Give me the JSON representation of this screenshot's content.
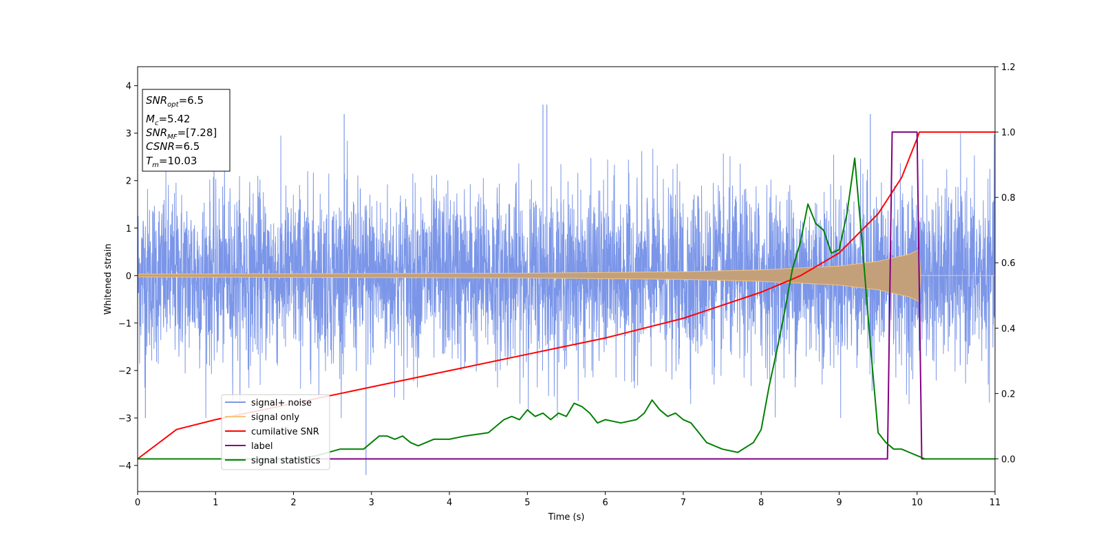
{
  "chart_data": {
    "type": "line",
    "xlabel": "Time (s)",
    "ylabel": "Whitened strain",
    "xlim": [
      0,
      11
    ],
    "ylim_left": [
      -4.55,
      4.4
    ],
    "ylim_right": [
      -0.1,
      1.2
    ],
    "x_ticks": [
      "0",
      "1",
      "2",
      "3",
      "4",
      "5",
      "6",
      "7",
      "8",
      "9",
      "10",
      "11"
    ],
    "y_left_ticks": [
      "4",
      "3",
      "2",
      "1",
      "0",
      "−1",
      "−2",
      "−3",
      "−4"
    ],
    "y_right_ticks": [
      "1.2",
      "1.0",
      "0.8",
      "0.6",
      "0.4",
      "0.2",
      "0.0"
    ],
    "grid": false,
    "legend_position": "lower-left",
    "info_box": {
      "snr_opt_base": "SNR",
      "snr_opt_sub": "opt",
      "snr_opt_val": "=6.5",
      "mc_base": "M",
      "mc_sub": "c",
      "mc_val": "=5.42",
      "snr_mf_base": "SNR",
      "snr_mf_sub": "MF",
      "snr_mf_val": "=[7.28]",
      "csnr_base": "CSNR",
      "csnr_val": "=6.5",
      "tm_base": "T",
      "tm_sub": "m",
      "tm_val": "=10.03"
    },
    "series": [
      {
        "name": "signal+ noise",
        "color": "#7b96e8",
        "axis": "left",
        "noise_std": 0.9,
        "peak_times": [
          0.1,
          2.65,
          2.93,
          5.2,
          5.25,
          9.4
        ],
        "peak_values": [
          -3.0,
          3.4,
          -4.2,
          3.6,
          3.6,
          3.4
        ]
      },
      {
        "name": "signal only",
        "color": "#f5c57a",
        "axis": "left",
        "envelope": {
          "x": [
            0,
            5,
            7,
            8,
            9,
            9.5,
            9.9,
            10.03,
            10.04,
            11
          ],
          "amp": [
            0.03,
            0.05,
            0.08,
            0.12,
            0.2,
            0.3,
            0.45,
            0.55,
            0.0,
            0.0
          ]
        }
      },
      {
        "name": "cumilative SNR",
        "color": "#ff0000",
        "axis": "right",
        "x": [
          0,
          0.5,
          1,
          2,
          3,
          4,
          5,
          6,
          7,
          8,
          8.5,
          9,
          9.5,
          9.8,
          10.0,
          10.03,
          11
        ],
        "values": [
          0.0,
          0.09,
          0.12,
          0.17,
          0.22,
          0.27,
          0.32,
          0.37,
          0.43,
          0.51,
          0.56,
          0.63,
          0.75,
          0.86,
          0.98,
          1.0,
          1.0
        ]
      },
      {
        "name": "label",
        "color": "#800080",
        "axis": "right",
        "x": [
          0,
          9.62,
          9.68,
          10.0,
          10.06,
          11
        ],
        "values": [
          0,
          0,
          1,
          1,
          0,
          0
        ]
      },
      {
        "name": "signal statistics",
        "color": "#008000",
        "axis": "right",
        "x": [
          0,
          0.5,
          1,
          1.5,
          2,
          2.3,
          2.6,
          2.9,
          3.0,
          3.1,
          3.2,
          3.3,
          3.4,
          3.5,
          3.6,
          3.8,
          4.0,
          4.2,
          4.5,
          4.7,
          4.8,
          4.9,
          5.0,
          5.1,
          5.2,
          5.3,
          5.4,
          5.5,
          5.6,
          5.7,
          5.8,
          5.9,
          6.0,
          6.2,
          6.4,
          6.5,
          6.6,
          6.7,
          6.8,
          6.9,
          7.0,
          7.1,
          7.2,
          7.3,
          7.4,
          7.5,
          7.7,
          7.9,
          8.0,
          8.1,
          8.2,
          8.3,
          8.4,
          8.5,
          8.6,
          8.7,
          8.8,
          8.9,
          9.0,
          9.1,
          9.2,
          9.3,
          9.4,
          9.5,
          9.6,
          9.7,
          9.8,
          9.9,
          10.0,
          10.1,
          11
        ],
        "values": [
          0.0,
          0.0,
          0.0,
          0.0,
          0.0,
          0.01,
          0.03,
          0.03,
          0.05,
          0.07,
          0.07,
          0.06,
          0.07,
          0.05,
          0.04,
          0.06,
          0.06,
          0.07,
          0.08,
          0.12,
          0.13,
          0.12,
          0.15,
          0.13,
          0.14,
          0.12,
          0.14,
          0.13,
          0.17,
          0.16,
          0.14,
          0.11,
          0.12,
          0.11,
          0.12,
          0.14,
          0.18,
          0.15,
          0.13,
          0.14,
          0.12,
          0.11,
          0.08,
          0.05,
          0.04,
          0.03,
          0.02,
          0.05,
          0.09,
          0.22,
          0.33,
          0.45,
          0.58,
          0.66,
          0.78,
          0.72,
          0.7,
          0.63,
          0.64,
          0.75,
          0.92,
          0.65,
          0.35,
          0.08,
          0.05,
          0.03,
          0.03,
          0.02,
          0.01,
          0.0,
          0.0
        ]
      }
    ]
  }
}
